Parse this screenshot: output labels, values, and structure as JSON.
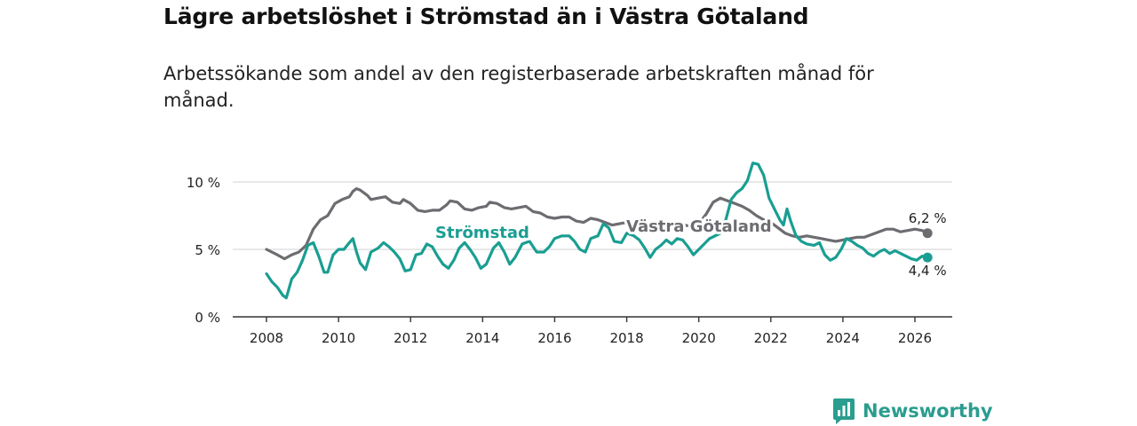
{
  "header": {
    "title": "Lägre arbetslöshet i Strömstad än i Västra Götaland",
    "subtitle": "Arbetssökande som andel av den registerbaserade arbetskraften månad för månad."
  },
  "brand": {
    "name": "Newsworthy",
    "icon": "newsworthy-logo-icon"
  },
  "colors": {
    "stromstad": "#1a9e92",
    "vastra_gotaland": "#6d6c71",
    "grid": "#d9d9d9",
    "axis": "#333333"
  },
  "chart_data": {
    "type": "line",
    "title": "Lägre arbetslöshet i Strömstad än i Västra Götaland",
    "xlabel": "",
    "ylabel": "",
    "xlim": [
      2007.5,
      2027.0
    ],
    "ylim": [
      0,
      10.5
    ],
    "x_ticks": [
      2008,
      2010,
      2012,
      2014,
      2016,
      2018,
      2020,
      2022,
      2024,
      2026
    ],
    "y_ticks": [
      0,
      5,
      10
    ],
    "y_tick_labels": [
      "0 %",
      "5 %",
      "10 %"
    ],
    "series": [
      {
        "name": "Västra Götaland",
        "label": "Västra Götaland",
        "end_label": "6,2 %",
        "points": [
          [
            2008.0,
            5.0
          ],
          [
            2008.3,
            4.6
          ],
          [
            2008.5,
            4.3
          ],
          [
            2008.7,
            4.6
          ],
          [
            2008.9,
            4.8
          ],
          [
            2009.1,
            5.3
          ],
          [
            2009.3,
            6.5
          ],
          [
            2009.5,
            7.2
          ],
          [
            2009.7,
            7.5
          ],
          [
            2009.9,
            8.4
          ],
          [
            2010.1,
            8.7
          ],
          [
            2010.3,
            8.9
          ],
          [
            2010.4,
            9.3
          ],
          [
            2010.5,
            9.5
          ],
          [
            2010.6,
            9.4
          ],
          [
            2010.8,
            9.0
          ],
          [
            2010.9,
            8.7
          ],
          [
            2011.1,
            8.8
          ],
          [
            2011.3,
            8.9
          ],
          [
            2011.5,
            8.5
          ],
          [
            2011.7,
            8.4
          ],
          [
            2011.8,
            8.7
          ],
          [
            2012.0,
            8.4
          ],
          [
            2012.2,
            7.9
          ],
          [
            2012.4,
            7.8
          ],
          [
            2012.6,
            7.9
          ],
          [
            2012.8,
            7.9
          ],
          [
            2013.0,
            8.3
          ],
          [
            2013.1,
            8.6
          ],
          [
            2013.3,
            8.5
          ],
          [
            2013.5,
            8.0
          ],
          [
            2013.7,
            7.9
          ],
          [
            2013.9,
            8.1
          ],
          [
            2014.1,
            8.2
          ],
          [
            2014.2,
            8.5
          ],
          [
            2014.4,
            8.4
          ],
          [
            2014.6,
            8.1
          ],
          [
            2014.8,
            8.0
          ],
          [
            2015.0,
            8.1
          ],
          [
            2015.2,
            8.2
          ],
          [
            2015.4,
            7.8
          ],
          [
            2015.6,
            7.7
          ],
          [
            2015.8,
            7.4
          ],
          [
            2016.0,
            7.3
          ],
          [
            2016.2,
            7.4
          ],
          [
            2016.4,
            7.4
          ],
          [
            2016.6,
            7.1
          ],
          [
            2016.8,
            7.0
          ],
          [
            2017.0,
            7.3
          ],
          [
            2017.2,
            7.2
          ],
          [
            2017.4,
            7.0
          ],
          [
            2017.6,
            6.8
          ],
          [
            2017.8,
            6.9
          ],
          [
            2018.0,
            7.0
          ],
          [
            2018.2,
            6.8
          ],
          [
            2018.4,
            6.7
          ],
          [
            2018.6,
            6.5
          ],
          [
            2018.8,
            6.6
          ],
          [
            2019.0,
            6.5
          ],
          [
            2019.2,
            6.6
          ],
          [
            2019.4,
            6.7
          ],
          [
            2019.6,
            6.8
          ],
          [
            2019.8,
            6.7
          ],
          [
            2020.0,
            6.9
          ],
          [
            2020.2,
            7.6
          ],
          [
            2020.4,
            8.5
          ],
          [
            2020.6,
            8.8
          ],
          [
            2020.8,
            8.6
          ],
          [
            2021.0,
            8.4
          ],
          [
            2021.2,
            8.2
          ],
          [
            2021.4,
            7.9
          ],
          [
            2021.6,
            7.5
          ],
          [
            2021.8,
            7.2
          ],
          [
            2022.0,
            7.0
          ],
          [
            2022.2,
            6.6
          ],
          [
            2022.4,
            6.2
          ],
          [
            2022.6,
            6.0
          ],
          [
            2022.8,
            5.9
          ],
          [
            2023.0,
            6.0
          ],
          [
            2023.2,
            5.9
          ],
          [
            2023.4,
            5.8
          ],
          [
            2023.6,
            5.7
          ],
          [
            2023.8,
            5.6
          ],
          [
            2024.0,
            5.7
          ],
          [
            2024.2,
            5.8
          ],
          [
            2024.4,
            5.9
          ],
          [
            2024.6,
            5.9
          ],
          [
            2024.8,
            6.1
          ],
          [
            2025.0,
            6.3
          ],
          [
            2025.2,
            6.5
          ],
          [
            2025.4,
            6.5
          ],
          [
            2025.6,
            6.3
          ],
          [
            2025.8,
            6.4
          ],
          [
            2026.0,
            6.5
          ],
          [
            2026.2,
            6.4
          ],
          [
            2026.35,
            6.2
          ]
        ]
      },
      {
        "name": "Strömstad",
        "label": "Strömstad",
        "end_label": "4,4 %",
        "points": [
          [
            2008.0,
            3.2
          ],
          [
            2008.15,
            2.6
          ],
          [
            2008.3,
            2.2
          ],
          [
            2008.45,
            1.6
          ],
          [
            2008.55,
            1.4
          ],
          [
            2008.7,
            2.8
          ],
          [
            2008.85,
            3.3
          ],
          [
            2009.0,
            4.2
          ],
          [
            2009.15,
            5.3
          ],
          [
            2009.3,
            5.5
          ],
          [
            2009.45,
            4.5
          ],
          [
            2009.6,
            3.3
          ],
          [
            2009.7,
            3.3
          ],
          [
            2009.85,
            4.6
          ],
          [
            2010.0,
            5.0
          ],
          [
            2010.15,
            5.0
          ],
          [
            2010.3,
            5.5
          ],
          [
            2010.4,
            5.8
          ],
          [
            2010.5,
            4.8
          ],
          [
            2010.6,
            4.0
          ],
          [
            2010.75,
            3.5
          ],
          [
            2010.9,
            4.8
          ],
          [
            2011.1,
            5.1
          ],
          [
            2011.25,
            5.5
          ],
          [
            2011.4,
            5.2
          ],
          [
            2011.55,
            4.8
          ],
          [
            2011.7,
            4.3
          ],
          [
            2011.85,
            3.4
          ],
          [
            2012.0,
            3.5
          ],
          [
            2012.15,
            4.6
          ],
          [
            2012.3,
            4.7
          ],
          [
            2012.45,
            5.4
          ],
          [
            2012.6,
            5.2
          ],
          [
            2012.75,
            4.5
          ],
          [
            2012.9,
            3.9
          ],
          [
            2013.05,
            3.6
          ],
          [
            2013.2,
            4.2
          ],
          [
            2013.35,
            5.1
          ],
          [
            2013.5,
            5.5
          ],
          [
            2013.65,
            5.0
          ],
          [
            2013.8,
            4.4
          ],
          [
            2013.95,
            3.6
          ],
          [
            2014.1,
            3.9
          ],
          [
            2014.3,
            5.1
          ],
          [
            2014.45,
            5.5
          ],
          [
            2014.6,
            4.8
          ],
          [
            2014.75,
            3.9
          ],
          [
            2014.9,
            4.4
          ],
          [
            2015.1,
            5.4
          ],
          [
            2015.3,
            5.6
          ],
          [
            2015.5,
            4.8
          ],
          [
            2015.7,
            4.8
          ],
          [
            2015.85,
            5.2
          ],
          [
            2016.0,
            5.8
          ],
          [
            2016.2,
            6.0
          ],
          [
            2016.4,
            6.0
          ],
          [
            2016.55,
            5.6
          ],
          [
            2016.7,
            5.0
          ],
          [
            2016.85,
            4.8
          ],
          [
            2017.0,
            5.8
          ],
          [
            2017.2,
            6.0
          ],
          [
            2017.35,
            6.9
          ],
          [
            2017.5,
            6.6
          ],
          [
            2017.65,
            5.6
          ],
          [
            2017.85,
            5.5
          ],
          [
            2018.0,
            6.2
          ],
          [
            2018.2,
            6.0
          ],
          [
            2018.35,
            5.7
          ],
          [
            2018.5,
            5.1
          ],
          [
            2018.65,
            4.4
          ],
          [
            2018.8,
            5.0
          ],
          [
            2018.95,
            5.3
          ],
          [
            2019.1,
            5.7
          ],
          [
            2019.25,
            5.4
          ],
          [
            2019.4,
            5.8
          ],
          [
            2019.55,
            5.7
          ],
          [
            2019.7,
            5.2
          ],
          [
            2019.85,
            4.6
          ],
          [
            2020.0,
            5.0
          ],
          [
            2020.15,
            5.4
          ],
          [
            2020.3,
            5.8
          ],
          [
            2020.45,
            6.0
          ],
          [
            2020.6,
            6.2
          ],
          [
            2020.75,
            7.2
          ],
          [
            2020.9,
            8.7
          ],
          [
            2021.05,
            9.2
          ],
          [
            2021.2,
            9.5
          ],
          [
            2021.35,
            10.1
          ],
          [
            2021.5,
            11.4
          ],
          [
            2021.65,
            11.3
          ],
          [
            2021.8,
            10.5
          ],
          [
            2021.95,
            8.8
          ],
          [
            2022.1,
            8.0
          ],
          [
            2022.25,
            7.2
          ],
          [
            2022.35,
            6.8
          ],
          [
            2022.45,
            8.0
          ],
          [
            2022.55,
            7.1
          ],
          [
            2022.7,
            6.0
          ],
          [
            2022.85,
            5.6
          ],
          [
            2023.0,
            5.4
          ],
          [
            2023.2,
            5.3
          ],
          [
            2023.35,
            5.5
          ],
          [
            2023.5,
            4.6
          ],
          [
            2023.65,
            4.2
          ],
          [
            2023.8,
            4.4
          ],
          [
            2023.95,
            5.0
          ],
          [
            2024.1,
            5.8
          ],
          [
            2024.25,
            5.6
          ],
          [
            2024.4,
            5.3
          ],
          [
            2024.55,
            5.1
          ],
          [
            2024.7,
            4.7
          ],
          [
            2024.85,
            4.5
          ],
          [
            2025.0,
            4.8
          ],
          [
            2025.15,
            5.0
          ],
          [
            2025.3,
            4.7
          ],
          [
            2025.45,
            4.9
          ],
          [
            2025.6,
            4.7
          ],
          [
            2025.75,
            4.5
          ],
          [
            2025.9,
            4.3
          ],
          [
            2026.05,
            4.2
          ],
          [
            2026.2,
            4.5
          ],
          [
            2026.35,
            4.4
          ]
        ]
      }
    ]
  }
}
